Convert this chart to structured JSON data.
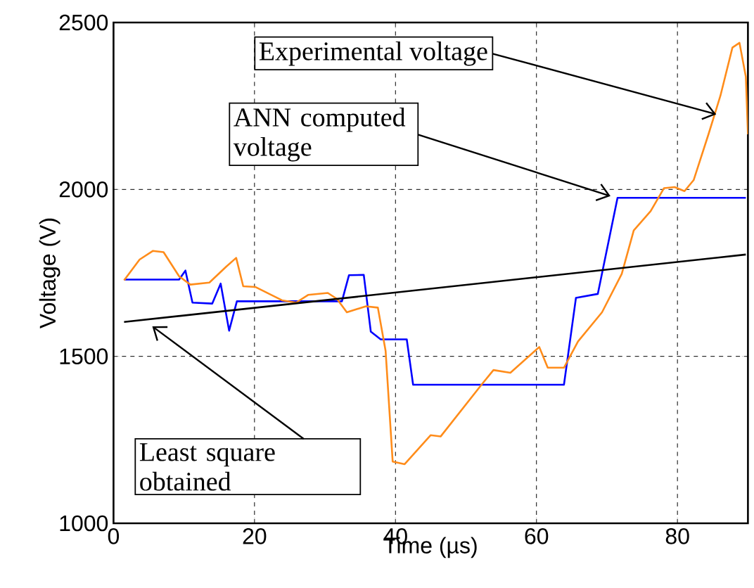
{
  "chart_data": {
    "type": "line",
    "xlabel": "Time (µs)",
    "ylabel": "Voltage (V)",
    "xlim": [
      0,
      90
    ],
    "ylim": [
      1000,
      2500
    ],
    "xticks": [
      0,
      20,
      40,
      60,
      80
    ],
    "yticks": [
      1000,
      1500,
      2000,
      2500
    ],
    "grid": true,
    "marker": "none",
    "line_style": "solid",
    "series": [
      {
        "color": "#0000ff",
        "x": [
          1.5,
          9.3,
          10.2,
          11.2,
          14,
          15.2,
          16.4,
          17.5,
          32.4,
          33.4,
          35.5,
          36.5,
          37.9,
          41.6,
          42.5,
          63.9,
          65.6,
          68.7,
          71.5,
          89.7
        ],
        "values": [
          1730,
          1730,
          1757,
          1661,
          1658,
          1718,
          1577,
          1665,
          1665,
          1743,
          1744,
          1574,
          1551,
          1551,
          1415,
          1415,
          1675,
          1687,
          1975,
          1975
        ]
      },
      {
        "color": "#ff8c1a",
        "x": [
          1.5,
          3.7,
          5.6,
          7.1,
          9.3,
          10.9,
          13.6,
          16.0,
          17.4,
          18.4,
          20.1,
          23.9,
          25.9,
          27.6,
          30.4,
          31.7,
          33.1,
          35.8,
          37.5,
          38.6,
          39.6,
          41.3,
          45,
          46.4,
          52.2,
          53.9,
          56.3,
          60.4,
          61.6,
          63.9,
          65.9,
          69.3,
          72.1,
          73.8,
          76.2,
          78.1,
          79.6,
          81,
          82.3,
          84.4,
          86.1,
          87.8,
          88.8,
          89.7,
          90
        ],
        "values": [
          1728,
          1790,
          1816,
          1812,
          1740,
          1715,
          1721,
          1769,
          1795,
          1710,
          1708,
          1668,
          1661,
          1684,
          1690,
          1672,
          1632,
          1650,
          1646,
          1516,
          1185,
          1177,
          1264,
          1260,
          1415,
          1459,
          1451,
          1528,
          1466,
          1466,
          1545,
          1632,
          1747,
          1877,
          1935,
          2004,
          2007,
          1995,
          2028,
          2165,
          2281,
          2425,
          2439,
          2338,
          2165
        ]
      },
      {
        "color": "#000000",
        "x": [
          1.5,
          89.7
        ],
        "values": [
          1603,
          1805
        ]
      }
    ],
    "annotations": [
      {
        "text": "Experimental voltage",
        "x": 85.5,
        "y": 2225
      },
      {
        "text": "ANN computed voltage",
        "x": 70.5,
        "y": 1980
      },
      {
        "text": "Least square obtained",
        "x": 5.5,
        "y": 1590
      }
    ]
  }
}
